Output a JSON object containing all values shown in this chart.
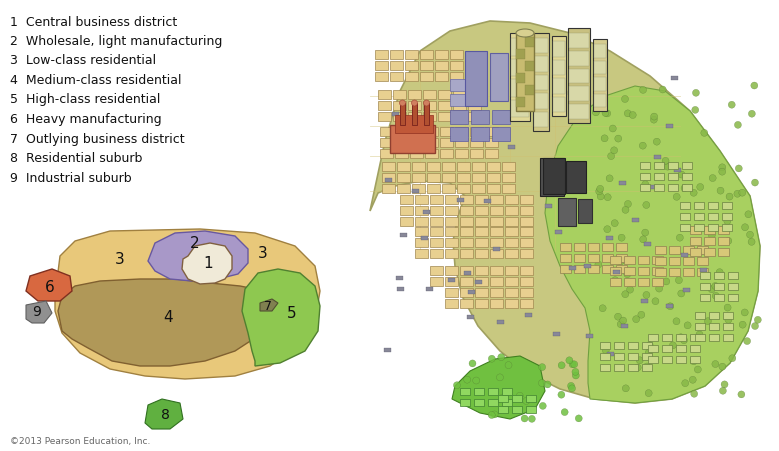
{
  "legend_items": [
    {
      "num": "1",
      "label": "Central business district"
    },
    {
      "num": "2",
      "label": "Wholesale, light manufacturing"
    },
    {
      "num": "3",
      "label": "Low-class residential"
    },
    {
      "num": "4",
      "label": "Medium-class residential"
    },
    {
      "num": "5",
      "label": "High-class residential"
    },
    {
      "num": "6",
      "label": "Heavy manufacturing"
    },
    {
      "num": "7",
      "label": "Outlying business district"
    },
    {
      "num": "8",
      "label": "Residential suburb"
    },
    {
      "num": "9",
      "label": "Industrial suburb"
    }
  ],
  "copyright": "©2013 Pearson Education, Inc.",
  "bg_color": "#ffffff",
  "zone_colors": {
    "z1": "#f0ead8",
    "z2": "#a898c8",
    "z3_light": "#e8c87a",
    "z3_dark": "#c8a850",
    "z4": "#b09858",
    "z5": "#8ec850",
    "z6": "#d86840",
    "z7": "#b09858",
    "z8": "#60b040",
    "z9": "#909090"
  },
  "city_colors": {
    "base": "#c8c880",
    "base_edge": "#a0a060",
    "buildings_low": "#e8d090",
    "buildings_low_edge": "#a08850",
    "buildings_med": "#d8c878",
    "buildings_high_edge": "#706840",
    "cbd_light": "#e0d898",
    "cbd_dark": "#888858",
    "cbd_stripe": "#c8c070",
    "purple_bld": "#9090b8",
    "green_suburb": "#a8d060",
    "green_suburb2": "#70c040",
    "factory_red": "#d07050",
    "factory_edge": "#904030",
    "dark_bld": "#505050",
    "road": "#d0c880"
  }
}
